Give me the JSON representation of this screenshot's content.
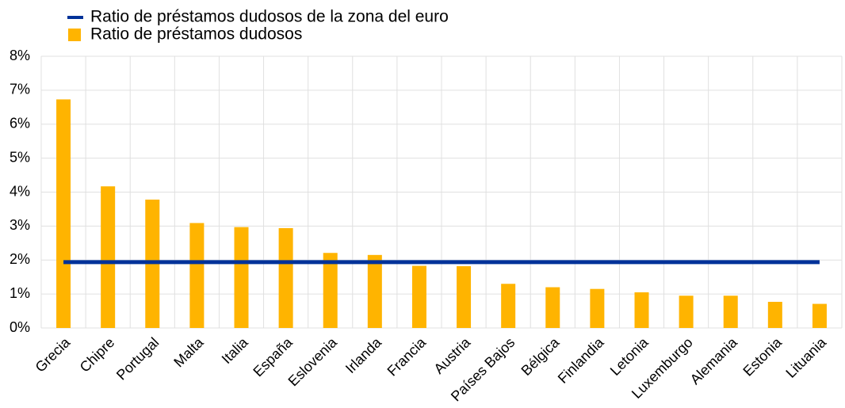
{
  "chart_data": {
    "type": "bar_line",
    "categories": [
      "Grecia",
      "Chipre",
      "Portugal",
      "Malta",
      "Italia",
      "España",
      "Eslovenia",
      "Irlanda",
      "Francia",
      "Austria",
      "Países Bajos",
      "Bélgica",
      "Finlandia",
      "Letonia",
      "Luxemburgo",
      "Alemania",
      "Estonia",
      "Lituania"
    ],
    "series": [
      {
        "name": "Ratio de préstamos dudosos de la zona del euro",
        "type": "line",
        "color": "#003299",
        "values": [
          1.94,
          1.94,
          1.94,
          1.94,
          1.94,
          1.94,
          1.94,
          1.94,
          1.94,
          1.94,
          1.94,
          1.94,
          1.94,
          1.94,
          1.94,
          1.94,
          1.94,
          1.94
        ]
      },
      {
        "name": "Ratio de préstamos dudosos",
        "type": "bar",
        "color": "#ffb400",
        "values": [
          6.73,
          4.17,
          3.78,
          3.09,
          2.97,
          2.94,
          2.21,
          2.15,
          1.83,
          1.82,
          1.3,
          1.2,
          1.15,
          1.05,
          0.95,
          0.95,
          0.77,
          0.71
        ]
      }
    ],
    "ylim": [
      0,
      8
    ],
    "yticks": [
      {
        "value": 0,
        "label": "0%"
      },
      {
        "value": 1,
        "label": "1%"
      },
      {
        "value": 2,
        "label": "2%"
      },
      {
        "value": 3,
        "label": "3%"
      },
      {
        "value": 4,
        "label": "4%"
      },
      {
        "value": 5,
        "label": "5%"
      },
      {
        "value": 6,
        "label": "6%"
      },
      {
        "value": 7,
        "label": "7%"
      },
      {
        "value": 8,
        "label": "8%"
      }
    ],
    "grid": true
  }
}
